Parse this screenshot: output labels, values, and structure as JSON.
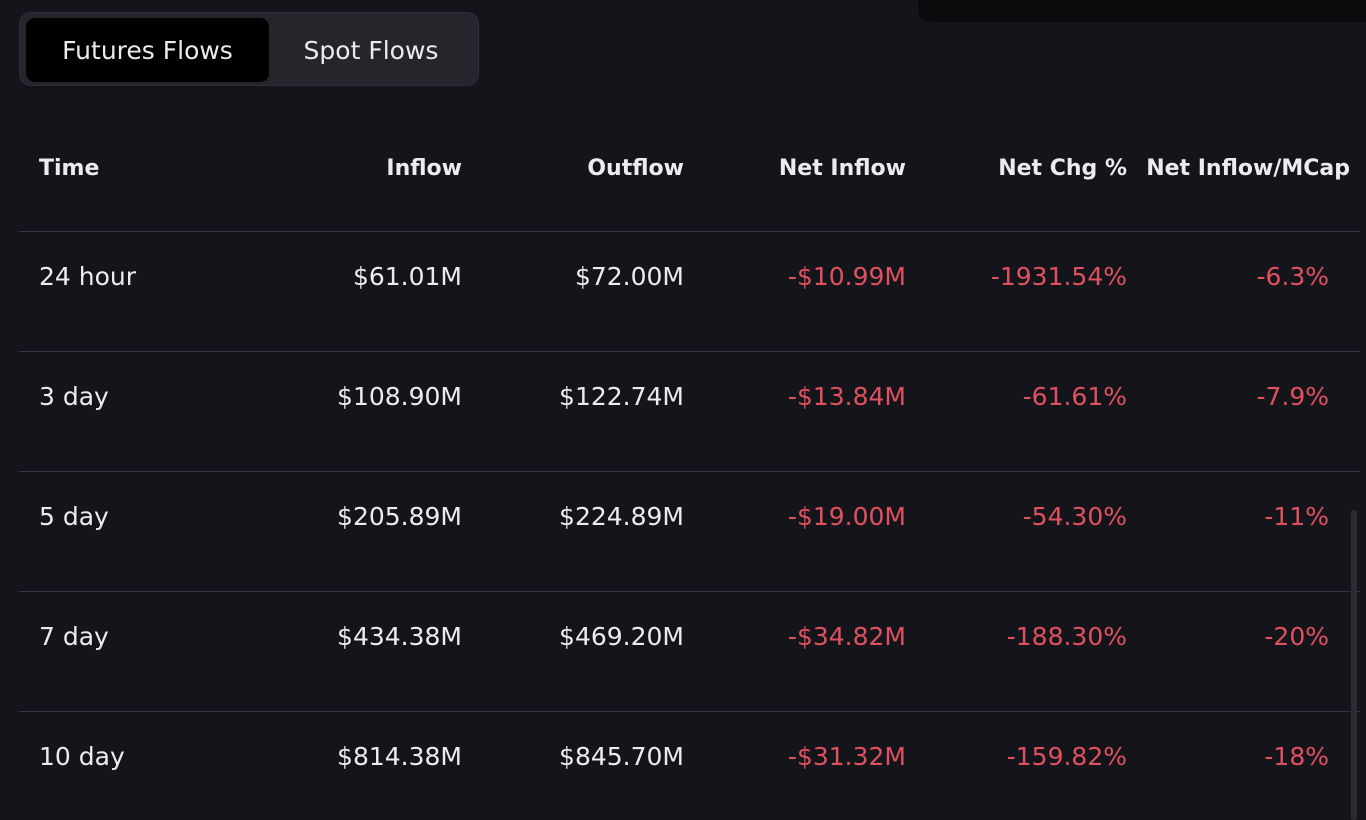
{
  "tabs": {
    "active_label": "Futures Flows",
    "inactive_label": "Spot Flows"
  },
  "table": {
    "headers": {
      "time": "Time",
      "inflow": "Inflow",
      "outflow": "Outflow",
      "net_inflow": "Net Inflow",
      "net_chg": "Net Chg %",
      "net_inflow_mcap": "Net Inflow/MCap"
    },
    "rows": [
      {
        "time": "24 hour",
        "inflow": "$61.01M",
        "outflow": "$72.00M",
        "net_inflow": "-$10.99M",
        "net_chg": "-1931.54%",
        "net_inflow_mcap": "-6.3%"
      },
      {
        "time": "3 day",
        "inflow": "$108.90M",
        "outflow": "$122.74M",
        "net_inflow": "-$13.84M",
        "net_chg": "-61.61%",
        "net_inflow_mcap": "-7.9%"
      },
      {
        "time": "5 day",
        "inflow": "$205.89M",
        "outflow": "$224.89M",
        "net_inflow": "-$19.00M",
        "net_chg": "-54.30%",
        "net_inflow_mcap": "-11%"
      },
      {
        "time": "7 day",
        "inflow": "$434.38M",
        "outflow": "$469.20M",
        "net_inflow": "-$34.82M",
        "net_chg": "-188.30%",
        "net_inflow_mcap": "-20%"
      },
      {
        "time": "10 day",
        "inflow": "$814.38M",
        "outflow": "$845.70M",
        "net_inflow": "-$31.32M",
        "net_chg": "-159.82%",
        "net_inflow_mcap": "-18%"
      }
    ]
  },
  "colors": {
    "background": "#14151a",
    "negative": "#e0505f",
    "text": "#eaecef",
    "divider": "#33363d"
  }
}
